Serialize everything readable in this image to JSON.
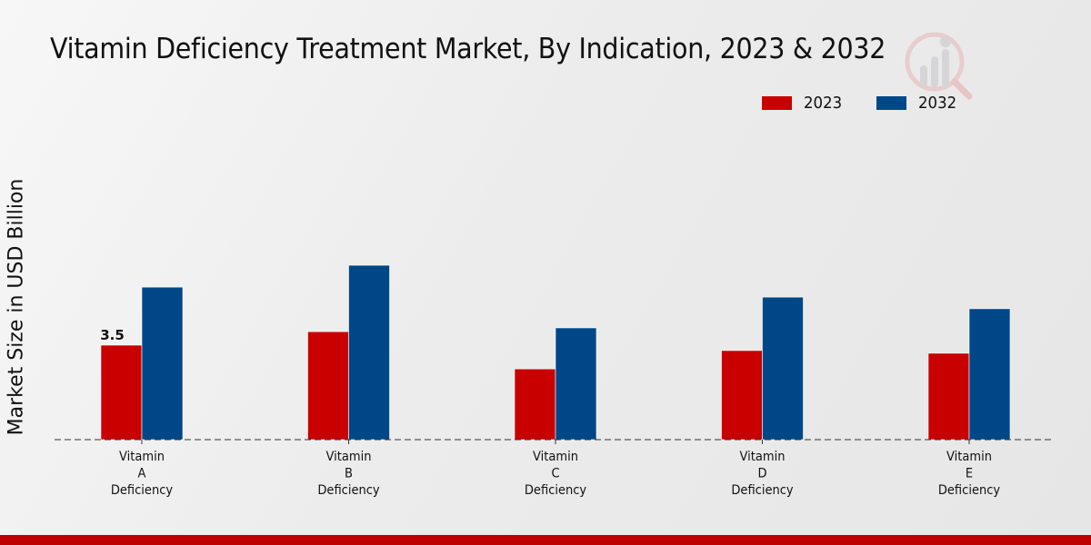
{
  "chart_data": {
    "type": "bar",
    "title": "Vitamin Deficiency Treatment Market, By Indication, 2023 & 2032",
    "xlabel": "",
    "ylabel": "Market Size in USD Billion",
    "categories": [
      [
        "Vitamin",
        "A",
        "Deficiency"
      ],
      [
        "Vitamin",
        "B",
        "Deficiency"
      ],
      [
        "Vitamin",
        "C",
        "Deficiency"
      ],
      [
        "Vitamin",
        "D",
        "Deficiency"
      ],
      [
        "Vitamin",
        "E",
        "Deficiency"
      ]
    ],
    "series": [
      {
        "name": "2023",
        "color": "#c80000",
        "values": [
          3.5,
          4.0,
          2.62,
          3.3,
          3.2
        ]
      },
      {
        "name": "2032",
        "color": "#004788",
        "values": [
          5.65,
          6.46,
          4.14,
          5.28,
          4.85
        ]
      }
    ],
    "data_labels": [
      {
        "series": 0,
        "index": 0,
        "text": "3.5"
      }
    ],
    "ylim": [
      0,
      7.5
    ],
    "grid": false,
    "baseline_style": "dashed",
    "legend_position": "top-right"
  },
  "colors": {
    "accent_bar": "#c00000"
  }
}
